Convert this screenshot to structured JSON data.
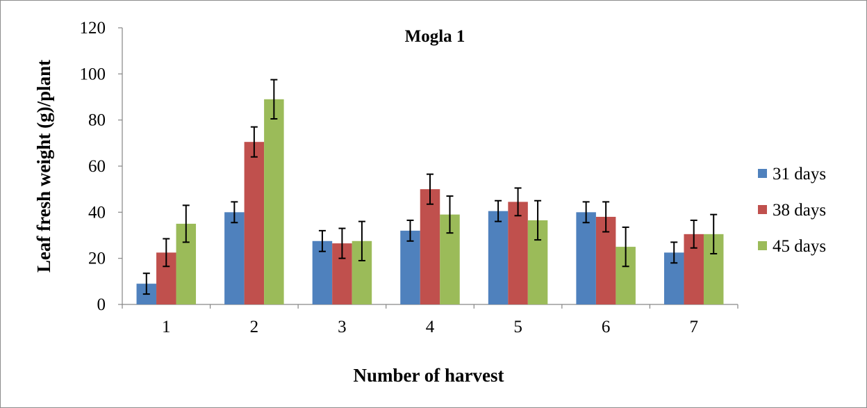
{
  "chart_data": {
    "type": "bar",
    "title": "Mogla 1",
    "xlabel": "Number of harvest",
    "ylabel": "Leaf fresh weight (g)/plant",
    "categories": [
      "1",
      "2",
      "3",
      "4",
      "5",
      "6",
      "7"
    ],
    "ylim": [
      0,
      120
    ],
    "yticks": [
      "0",
      "20",
      "40",
      "60",
      "80",
      "100",
      "120"
    ],
    "grid": false,
    "legend_position": "right",
    "error_bars": true,
    "series": [
      {
        "name": "31 days",
        "color": "#4F81BD",
        "values": [
          9,
          40,
          27.5,
          32,
          40.5,
          40,
          22.5
        ],
        "errors": [
          4.5,
          4.5,
          4.5,
          4.5,
          4.5,
          4.5,
          4.5
        ]
      },
      {
        "name": "38 days",
        "color": "#C0504D",
        "values": [
          22.5,
          70.5,
          26.5,
          50,
          44.5,
          38,
          30.5
        ],
        "errors": [
          6,
          6.5,
          6.5,
          6.5,
          6,
          6.5,
          6
        ]
      },
      {
        "name": "45 days",
        "color": "#9BBB59",
        "values": [
          35,
          89,
          27.5,
          39,
          36.5,
          25,
          30.5
        ],
        "errors": [
          8,
          8.5,
          8.5,
          8,
          8.5,
          8.5,
          8.5
        ]
      }
    ]
  }
}
